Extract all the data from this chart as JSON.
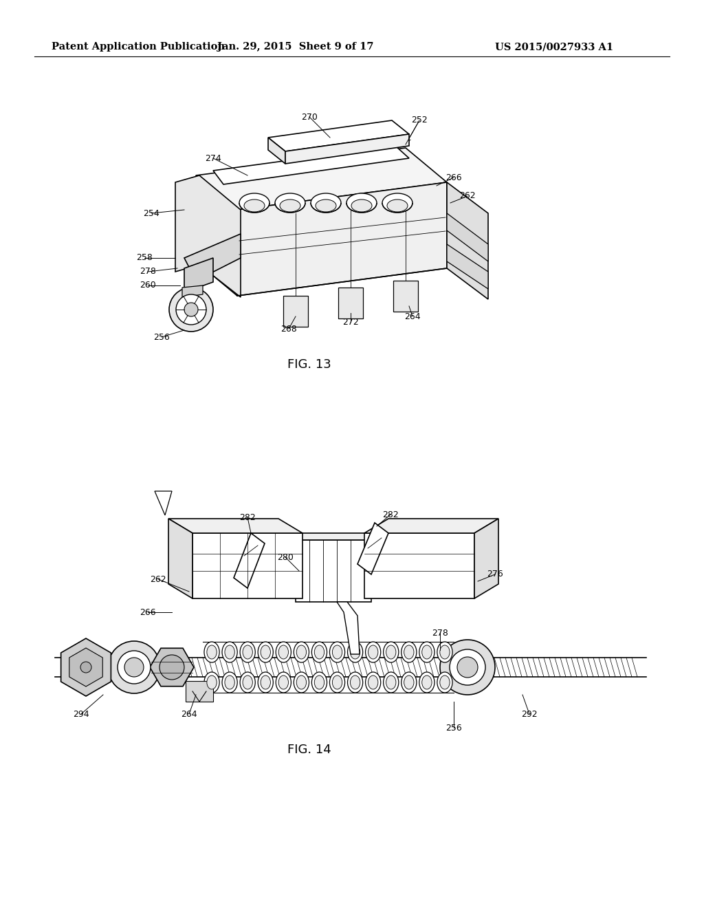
{
  "background_color": "#ffffff",
  "header_left": "Patent Application Publication",
  "header_center": "Jan. 29, 2015  Sheet 9 of 17",
  "header_right": "US 2015/0027933 A1",
  "fig13_label": "FIG. 13",
  "fig14_label": "FIG. 14",
  "ref_fontsize": 9.0,
  "fig_label_fontsize": 13,
  "header_fontsize": 10.5
}
